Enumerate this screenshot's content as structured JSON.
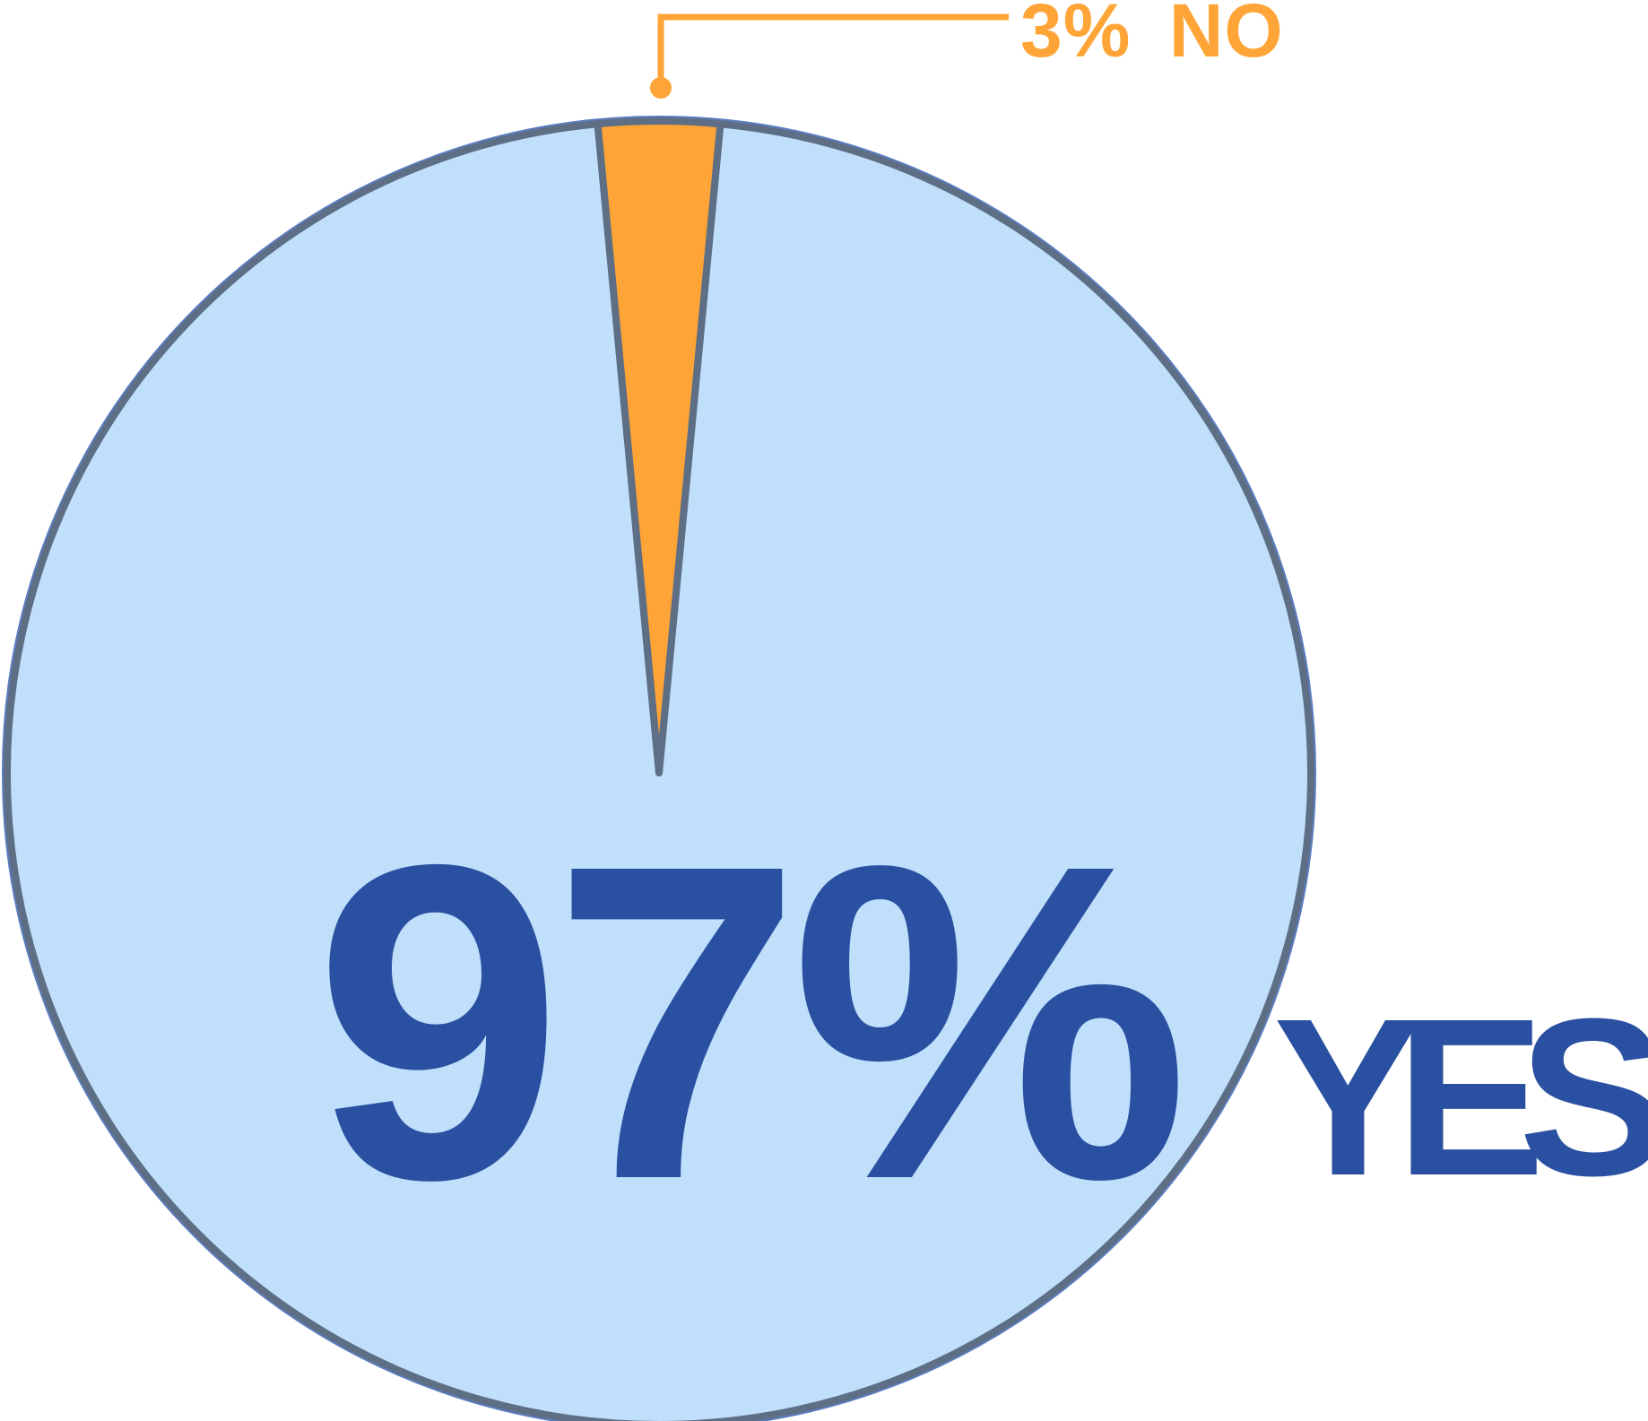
{
  "chart_data": {
    "type": "pie",
    "slices": [
      {
        "name": "YES",
        "value": 97,
        "label": "97%",
        "suffix": "YES",
        "color": "#bfdffb",
        "text_color": "#2a50a1"
      },
      {
        "name": "NO",
        "value": 3,
        "label": "3%",
        "suffix": "NO",
        "color": "#ffa537",
        "text_color": "#ffa537"
      }
    ],
    "outline_color": "#5e6e85",
    "rim_color": "#5b7dbf",
    "legend": "none",
    "title": ""
  }
}
